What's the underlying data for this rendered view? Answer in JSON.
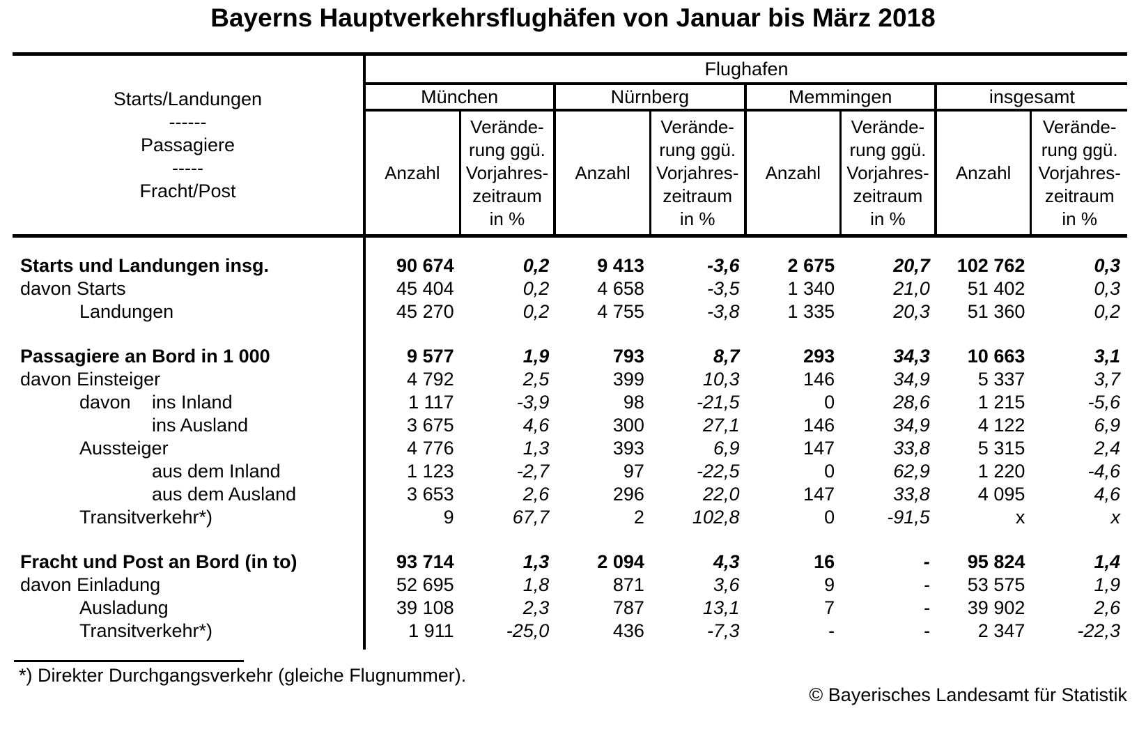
{
  "title": "Bayerns Hauptverkehrsflughäfen von Januar bis März 2018",
  "chart_data": {
    "type": "table",
    "title": "Bayerns Hauptverkehrsflughäfen von Januar bis März 2018",
    "group_header": "Flughafen",
    "stub_header": "Starts/Landungen\n------\nPassagiere\n-----\nFracht/Post",
    "column_groups": [
      "München",
      "Nürnberg",
      "Memmingen",
      "insgesamt"
    ],
    "subcolumns": [
      "Anzahl",
      "Veränderung ggü. Vorjahreszeitraum in %"
    ],
    "anzahl_label": "Anzahl",
    "change_label": "Verände-\nrung ggü.\nVorjahres-\nzeitraum\nin %",
    "rows": [
      {
        "label": "Starts und Landungen insg.",
        "bold": true,
        "indent": 0,
        "values": [
          "90 674",
          "0,2",
          "9 413",
          "-3,6",
          "2 675",
          "20,7",
          "102 762",
          "0,3"
        ]
      },
      {
        "label": "davon Starts",
        "bold": false,
        "indent": 0,
        "values": [
          "45 404",
          "0,2",
          "4 658",
          "-3,5",
          "1 340",
          "21,0",
          "51 402",
          "0,3"
        ]
      },
      {
        "label": "Landungen",
        "bold": false,
        "indent": 1,
        "values": [
          "45 270",
          "0,2",
          "4 755",
          "-3,8",
          "1 335",
          "20,3",
          "51 360",
          "0,2"
        ]
      },
      {
        "label": "Passagiere an Bord in 1 000",
        "bold": true,
        "indent": 0,
        "values": [
          "9 577",
          "1,9",
          "793",
          "8,7",
          "293",
          "34,3",
          "10 663",
          "3,1"
        ]
      },
      {
        "label": "davon Einsteiger",
        "bold": false,
        "indent": 0,
        "values": [
          "4 792",
          "2,5",
          "399",
          "10,3",
          "146",
          "34,9",
          "5 337",
          "3,7"
        ]
      },
      {
        "prefix": "davon",
        "label": "ins Inland",
        "bold": false,
        "indent": 1,
        "values": [
          "1 117",
          "-3,9",
          "98",
          "-21,5",
          "0",
          "28,6",
          "1 215",
          "-5,6"
        ]
      },
      {
        "label": "ins Ausland",
        "bold": false,
        "indent": 2,
        "values": [
          "3 675",
          "4,6",
          "300",
          "27,1",
          "146",
          "34,9",
          "4 122",
          "6,9"
        ]
      },
      {
        "label": "Aussteiger",
        "bold": false,
        "indent": 1,
        "values": [
          "4 776",
          "1,3",
          "393",
          "6,9",
          "147",
          "33,8",
          "5 315",
          "2,4"
        ]
      },
      {
        "label": "aus dem Inland",
        "bold": false,
        "indent": 2,
        "values": [
          "1 123",
          "-2,7",
          "97",
          "-22,5",
          "0",
          "62,9",
          "1 220",
          "-4,6"
        ]
      },
      {
        "label": "aus dem Ausland",
        "bold": false,
        "indent": 2,
        "values": [
          "3 653",
          "2,6",
          "296",
          "22,0",
          "147",
          "33,8",
          "4 095",
          "4,6"
        ]
      },
      {
        "label": "Transitverkehr*)",
        "bold": false,
        "indent": 1,
        "values": [
          "9",
          "67,7",
          "2",
          "102,8",
          "0",
          "-91,5",
          "x",
          "x"
        ]
      },
      {
        "label": "Fracht und Post an Bord (in to)",
        "bold": true,
        "indent": 0,
        "values": [
          "93 714",
          "1,3",
          "2 094",
          "4,3",
          "16",
          "-",
          "95 824",
          "1,4"
        ]
      },
      {
        "label": "davon Einladung",
        "bold": false,
        "indent": 0,
        "values": [
          "52 695",
          "1,8",
          "871",
          "3,6",
          "9",
          "-",
          "53 575",
          "1,9"
        ]
      },
      {
        "label": "Ausladung",
        "bold": false,
        "indent": 1,
        "values": [
          "39 108",
          "2,3",
          "787",
          "13,1",
          "7",
          "-",
          "39 902",
          "2,6"
        ]
      },
      {
        "label": "Transitverkehr*)",
        "bold": false,
        "indent": 1,
        "values": [
          "1 911",
          "-25,0",
          "436",
          "-7,3",
          "-",
          "-",
          "2 347",
          "-22,3"
        ]
      }
    ]
  },
  "footnote": "*) Direkter Durchgangsverkehr (gleiche Flugnummer).",
  "copyright": "© Bayerisches Landesamt für Statistik"
}
